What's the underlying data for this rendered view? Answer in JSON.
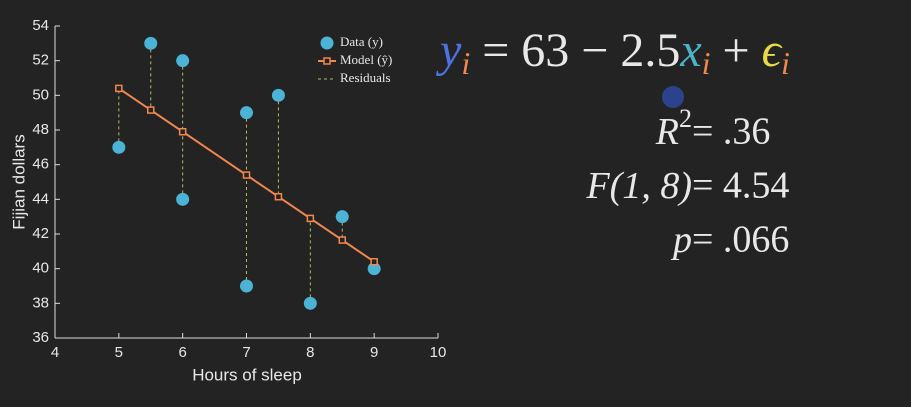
{
  "chart_data": {
    "type": "scatter",
    "xlabel": "Hours of sleep",
    "ylabel": "Fijian dollars",
    "xlim": [
      4,
      10
    ],
    "ylim": [
      36,
      54
    ],
    "xticks": [
      4,
      5,
      6,
      7,
      8,
      9,
      10
    ],
    "yticks": [
      36,
      38,
      40,
      42,
      44,
      46,
      48,
      50,
      52,
      54
    ],
    "series": [
      {
        "name": "Data (y)",
        "type": "scatter",
        "color": "#4ab3d6",
        "x": [
          5,
          5.5,
          6,
          6,
          7,
          7,
          7.5,
          8,
          8.5,
          9
        ],
        "values": [
          47,
          53,
          52,
          44,
          49,
          39,
          50,
          38,
          43,
          40
        ]
      },
      {
        "name": "Model (ŷ)",
        "type": "line",
        "color": "#f2874e",
        "x": [
          5,
          5.5,
          6,
          7,
          7.5,
          8,
          8.5,
          9
        ],
        "values": [
          50.4,
          49.15,
          47.9,
          45.4,
          44.15,
          42.9,
          41.65,
          40.4
        ]
      },
      {
        "name": "Residuals",
        "type": "residual",
        "color": "#b8bb5c"
      }
    ]
  },
  "equation": [
    "y",
    "i",
    " = 63 − 2.5",
    "x",
    "i",
    " + ",
    "ϵ",
    "i"
  ],
  "stats": [
    {
      "lhs": "R",
      "sup": "2",
      "rhs": " = .36"
    },
    {
      "lhs": "F(1, 8)",
      "rhs": " = 4.54"
    },
    {
      "lhs": "p",
      "rhs": " = .066"
    }
  ]
}
